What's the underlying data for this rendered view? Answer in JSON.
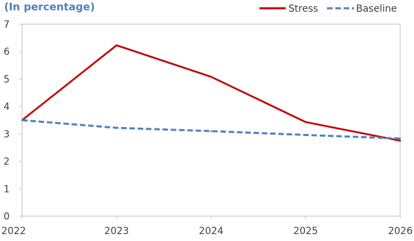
{
  "chart_data": {
    "type": "line",
    "subtitle": "(In percentage)",
    "x": [
      "2022",
      "2023",
      "2024",
      "2025",
      "2026"
    ],
    "ylim": [
      0,
      7
    ],
    "yticks": [
      "0",
      "1",
      "2",
      "3",
      "4",
      "5",
      "6",
      "7"
    ],
    "grid": false,
    "legend_position": "top-right",
    "series": [
      {
        "name": "Stress",
        "values": [
          3.5,
          6.23,
          5.08,
          3.43,
          2.75
        ],
        "color": "#c00000",
        "style": "solid"
      },
      {
        "name": "Baseline",
        "values": [
          3.5,
          3.22,
          3.1,
          2.96,
          2.83
        ],
        "color": "#4f81bd",
        "style": "dashed"
      }
    ],
    "colors": {
      "subtitle": "#4f81bd",
      "axis": "#bfbfbf"
    }
  }
}
